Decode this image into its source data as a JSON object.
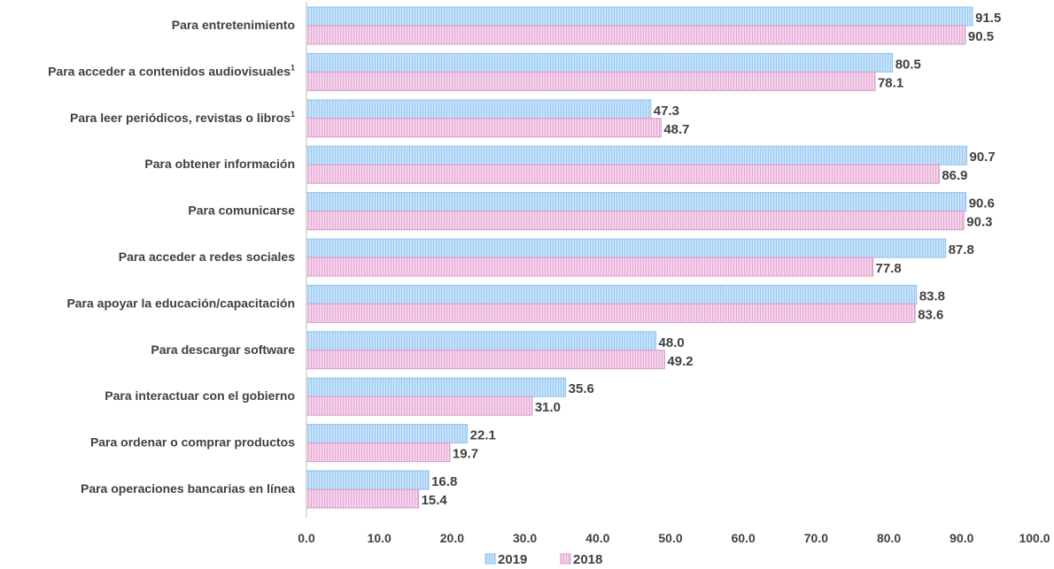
{
  "chart_data": {
    "type": "bar",
    "orientation": "horizontal",
    "categories": [
      "Para entretenimiento",
      "Para acceder a contenidos audiovisuales",
      "Para leer periódicos, revistas o libros",
      "Para obtener información",
      "Para comunicarse",
      "Para acceder a redes sociales",
      "Para apoyar la educación/capacitación",
      "Para descargar software",
      "Para interactuar con el gobierno",
      "Para ordenar o comprar productos",
      "Para operaciones bancarias en línea"
    ],
    "category_superscripts": [
      "",
      "1",
      "1",
      "",
      "",
      "",
      "",
      "",
      "",
      "",
      ""
    ],
    "series": [
      {
        "name": "2019",
        "color": "#b7d9f7",
        "values": [
          91.5,
          80.5,
          47.3,
          90.7,
          90.6,
          87.8,
          83.8,
          48.0,
          35.6,
          22.1,
          16.8
        ],
        "labels": [
          "91.5",
          "80.5",
          "47.3",
          "90.7",
          "90.6",
          "87.8",
          "83.8",
          "48.0",
          "35.6",
          "22.1",
          "16.8"
        ]
      },
      {
        "name": "2018",
        "color": "#f0c6e4",
        "values": [
          90.5,
          78.1,
          48.7,
          86.9,
          90.3,
          77.8,
          83.6,
          49.2,
          31.0,
          19.7,
          15.4
        ],
        "labels": [
          "90.5",
          "78.1",
          "48.7",
          "86.9",
          "90.3",
          "77.8",
          "83.6",
          "49.2",
          "31.0",
          "19.7",
          "15.4"
        ]
      }
    ],
    "xlim": [
      0,
      100
    ],
    "xticks": [
      "0.0",
      "10.0",
      "20.0",
      "30.0",
      "40.0",
      "50.0",
      "60.0",
      "70.0",
      "80.0",
      "90.0",
      "100.0"
    ],
    "legend_position": "bottom",
    "grid": false
  }
}
